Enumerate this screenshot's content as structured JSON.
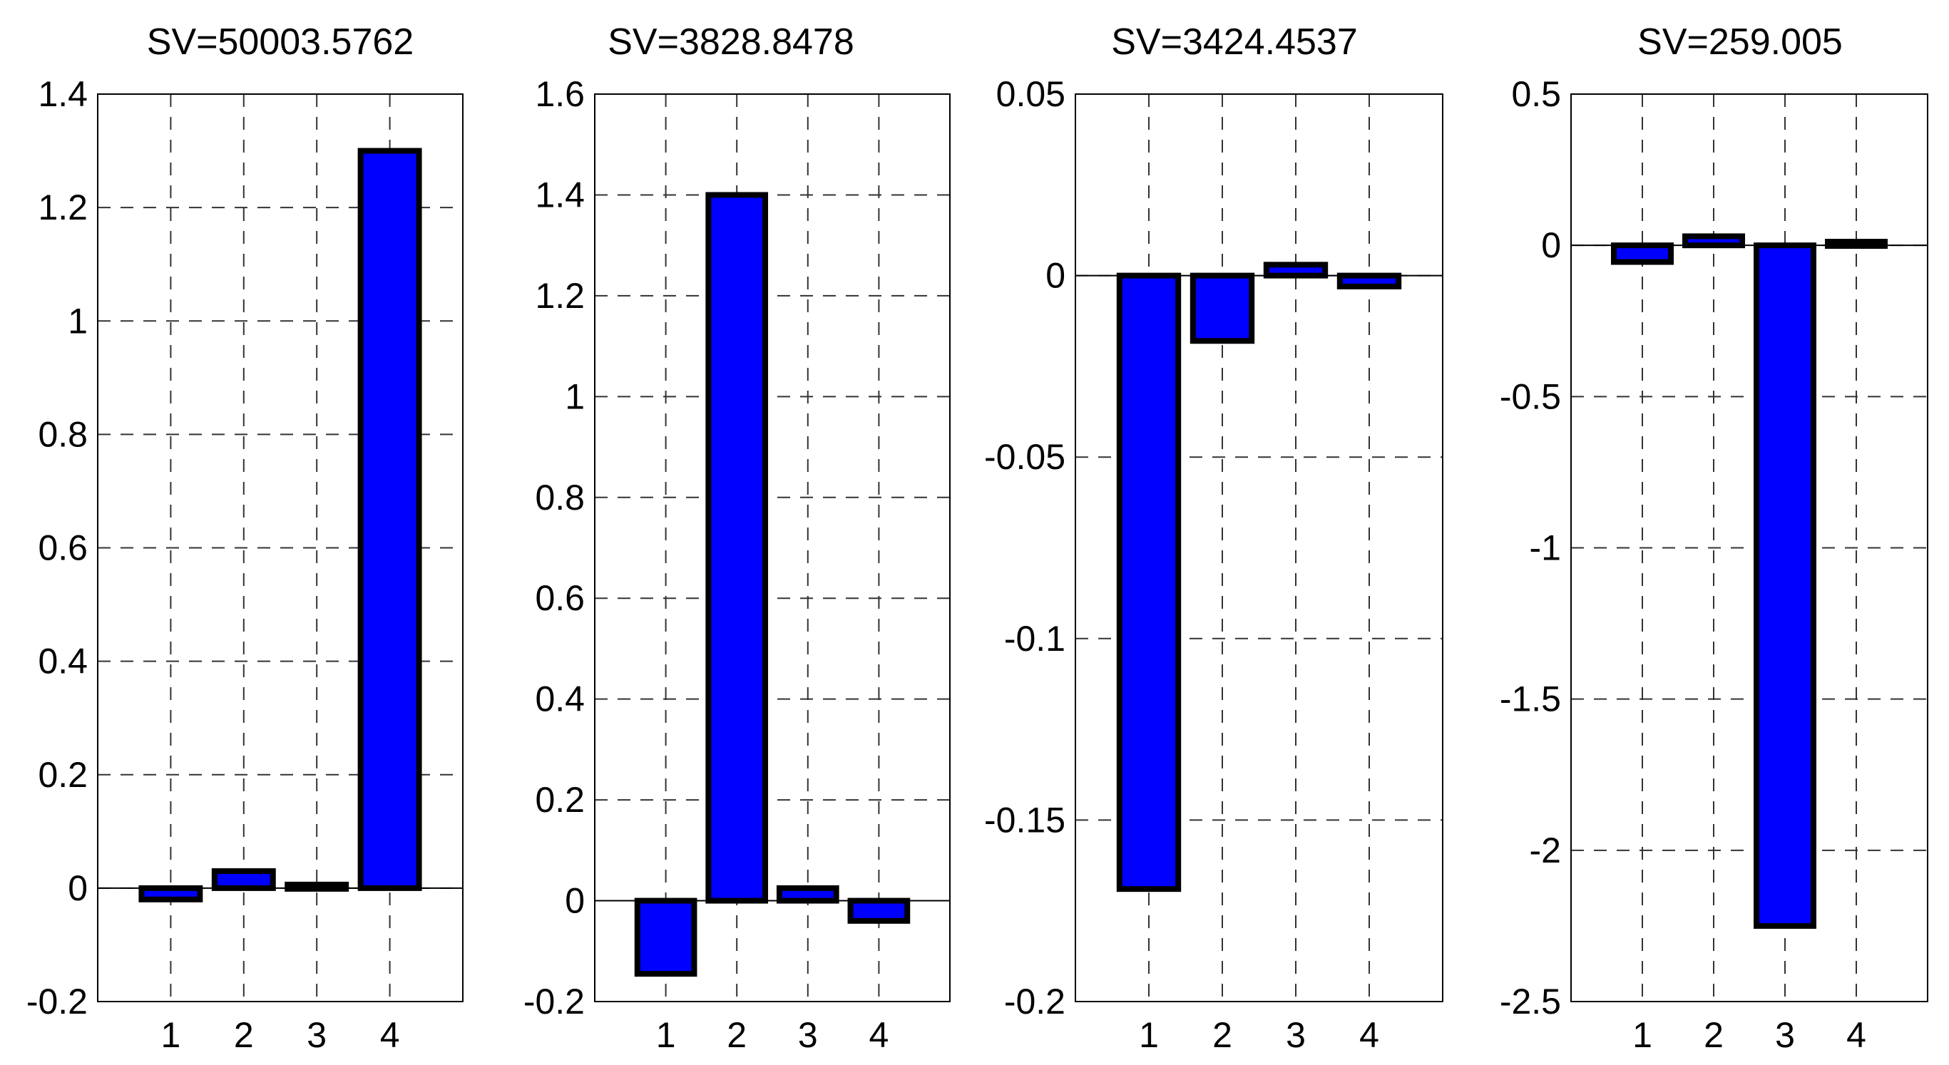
{
  "chart_data": [
    {
      "type": "bar",
      "title": "SV=50003.5762",
      "categories": [
        "1",
        "2",
        "3",
        "4"
      ],
      "values": [
        -0.02,
        0.03,
        0.005,
        1.3
      ],
      "ylim": [
        -0.2,
        1.4
      ],
      "yticks": [
        "1.4",
        "1.2",
        "1",
        "0.8",
        "0.6",
        "0.4",
        "0.2",
        "0",
        "-0.2"
      ],
      "ytick_values": [
        1.4,
        1.2,
        1.0,
        0.8,
        0.6,
        0.4,
        0.2,
        0,
        -0.2
      ],
      "grid": true,
      "color": "#0000ff"
    },
    {
      "type": "bar",
      "title": "SV=3828.8478",
      "categories": [
        "1",
        "2",
        "3",
        "4"
      ],
      "values": [
        -0.145,
        1.4,
        0.025,
        -0.04
      ],
      "ylim": [
        -0.2,
        1.6
      ],
      "yticks": [
        "1.6",
        "1.4",
        "1.2",
        "1",
        "0.8",
        "0.6",
        "0.4",
        "0.2",
        "0",
        "-0.2"
      ],
      "ytick_values": [
        1.6,
        1.4,
        1.2,
        1.0,
        0.8,
        0.6,
        0.4,
        0.2,
        0,
        -0.2
      ],
      "grid": true,
      "color": "#0000ff"
    },
    {
      "type": "bar",
      "title": "SV=3424.4537",
      "categories": [
        "1",
        "2",
        "3",
        "4"
      ],
      "values": [
        -0.169,
        -0.018,
        0.003,
        -0.003
      ],
      "ylim": [
        -0.2,
        0.05
      ],
      "yticks": [
        "0.05",
        "0",
        "-0.05",
        "-0.1",
        "-0.15",
        "-0.2"
      ],
      "ytick_values": [
        0.05,
        0,
        -0.05,
        -0.1,
        -0.15,
        -0.2
      ],
      "grid": true,
      "color": "#0000ff"
    },
    {
      "type": "bar",
      "title": "SV=259.005",
      "categories": [
        "1",
        "2",
        "3",
        "4"
      ],
      "values": [
        -0.055,
        0.03,
        -2.25,
        0.01
      ],
      "ylim": [
        -2.5,
        0.5
      ],
      "yticks": [
        "0.5",
        "0",
        "-0.5",
        "-1",
        "-1.5",
        "-2",
        "-2.5"
      ],
      "ytick_values": [
        0.5,
        0,
        -0.5,
        -1,
        -1.5,
        -2,
        -2.5
      ],
      "grid": true,
      "color": "#0000ff"
    }
  ]
}
